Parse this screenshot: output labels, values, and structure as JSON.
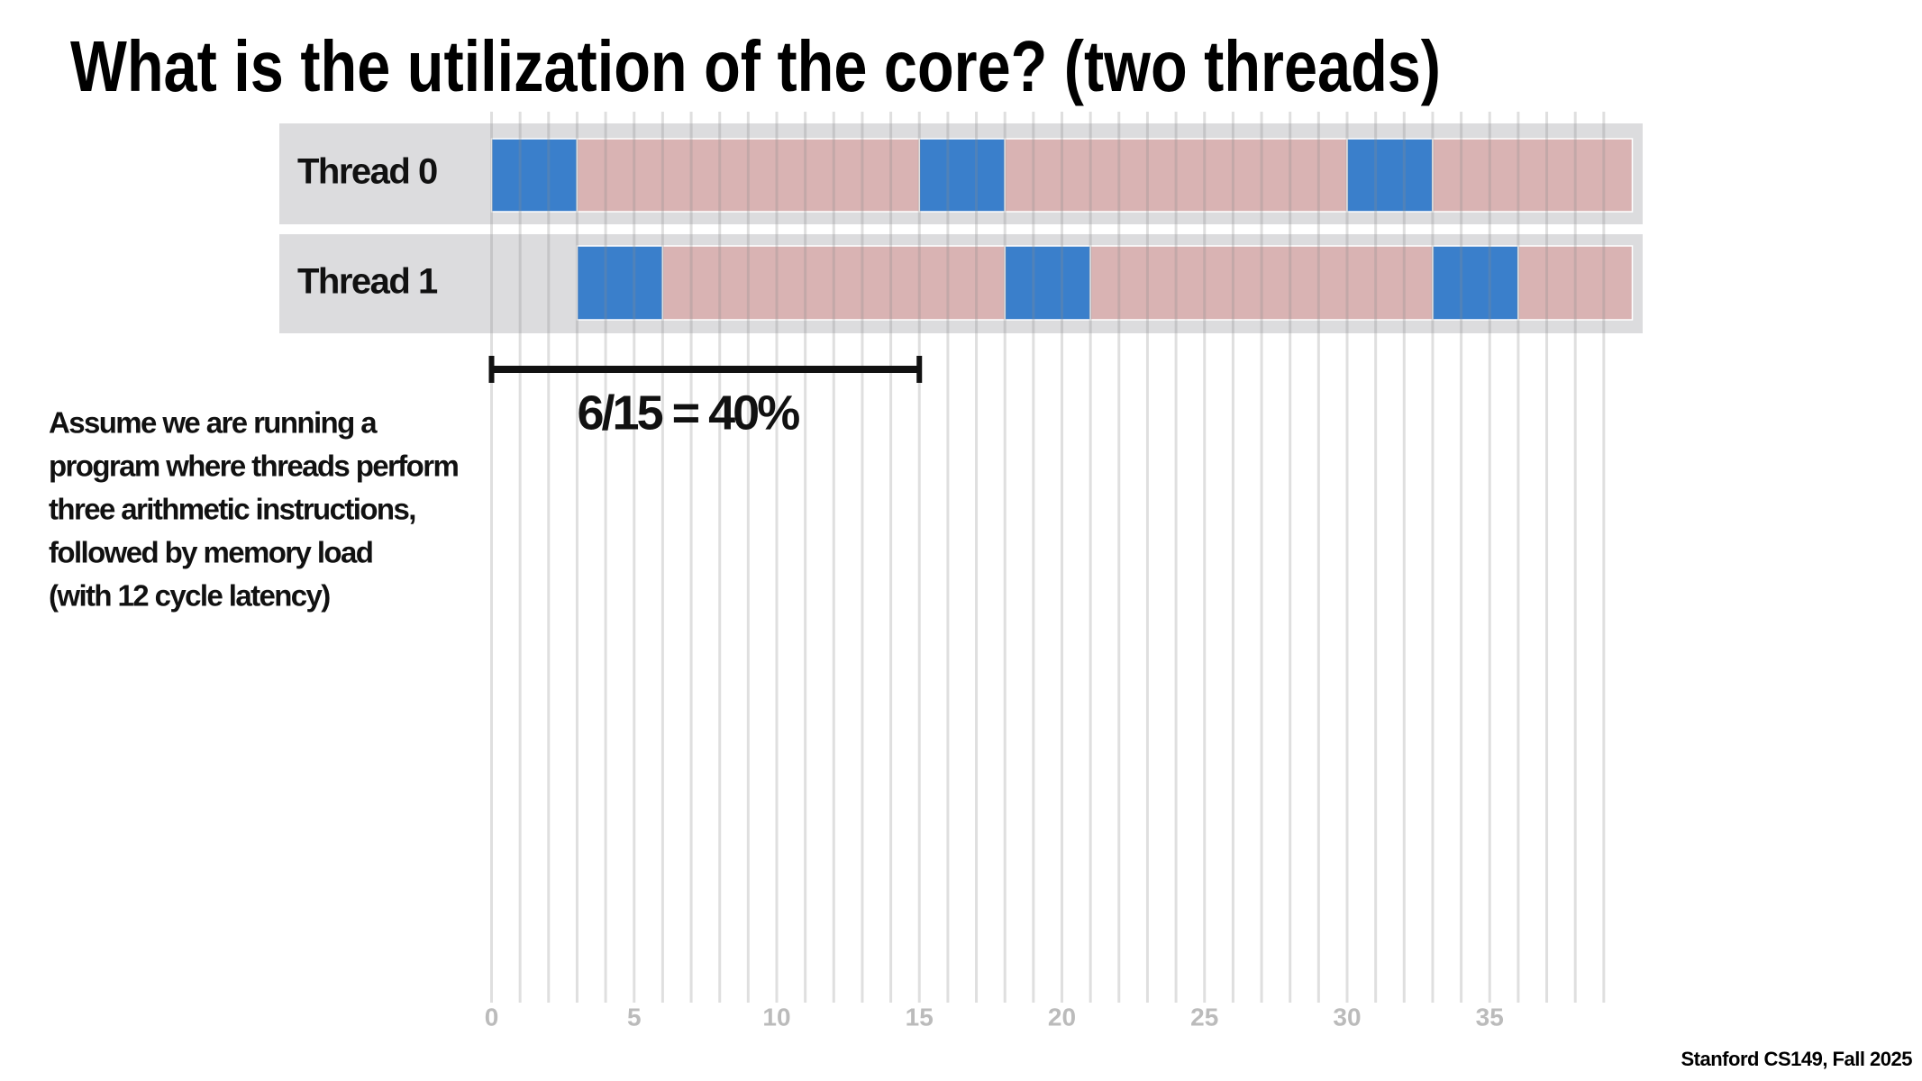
{
  "chart_data": {
    "type": "timeline",
    "title": "What is the utilization of the core? (two threads)",
    "xlim": [
      0,
      40
    ],
    "xticks": [
      0,
      5,
      10,
      15,
      20,
      25,
      30,
      35
    ],
    "grid_x": [
      0,
      1,
      2,
      3,
      4,
      5,
      6,
      7,
      8,
      9,
      10,
      11,
      12,
      13,
      14,
      15,
      16,
      17,
      18,
      19,
      20,
      21,
      22,
      23,
      24,
      25,
      26,
      27,
      28,
      29,
      30,
      31,
      32,
      33,
      34,
      35,
      36,
      37,
      38,
      39
    ],
    "colors": {
      "compute": "#3a7fcb",
      "stall": "#d9b3b3"
    },
    "series": [
      {
        "name": "Thread 0",
        "segments": [
          {
            "start": 0,
            "end": 3,
            "state": "compute"
          },
          {
            "start": 3,
            "end": 15,
            "state": "stall"
          },
          {
            "start": 15,
            "end": 18,
            "state": "compute"
          },
          {
            "start": 18,
            "end": 30,
            "state": "stall"
          },
          {
            "start": 30,
            "end": 33,
            "state": "compute"
          },
          {
            "start": 33,
            "end": 40,
            "state": "stall"
          }
        ]
      },
      {
        "name": "Thread 1",
        "segments": [
          {
            "start": 3,
            "end": 6,
            "state": "compute"
          },
          {
            "start": 6,
            "end": 18,
            "state": "stall"
          },
          {
            "start": 18,
            "end": 21,
            "state": "compute"
          },
          {
            "start": 21,
            "end": 33,
            "state": "stall"
          },
          {
            "start": 33,
            "end": 36,
            "state": "compute"
          },
          {
            "start": 36,
            "end": 40,
            "state": "stall"
          }
        ]
      }
    ],
    "bracket": {
      "start": 0,
      "end": 15,
      "label": "6/15 = 40%"
    },
    "description": [
      "Assume we are running a",
      "program where threads perform",
      "three arithmetic instructions,",
      "followed by memory load",
      "(with 12 cycle latency)"
    ],
    "footer": "Stanford CS149, Fall 2025"
  }
}
